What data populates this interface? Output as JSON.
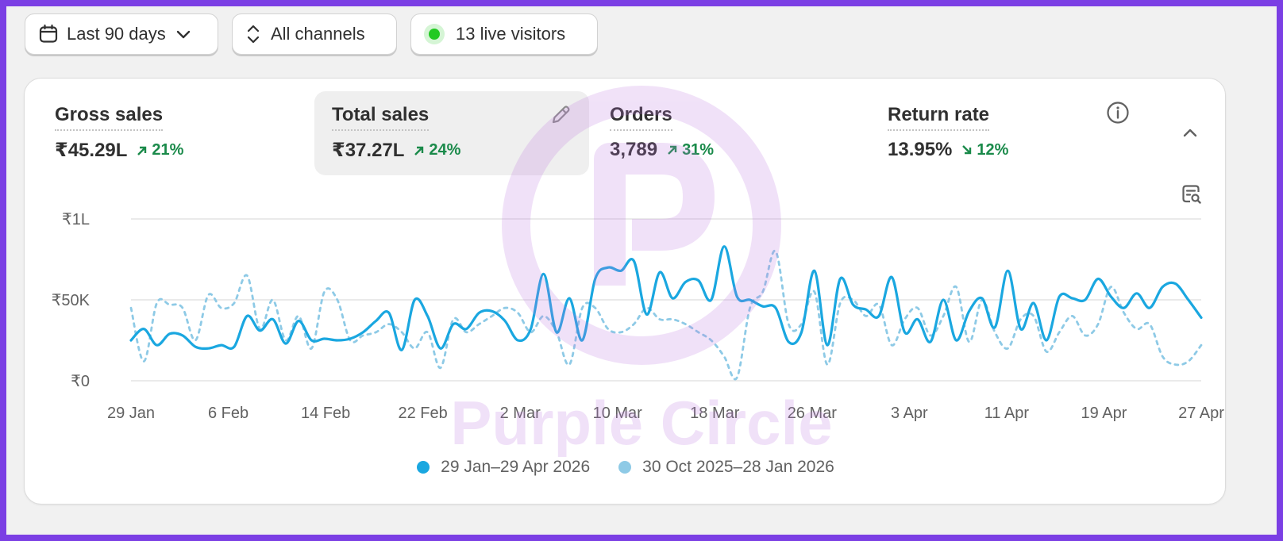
{
  "filters": {
    "date_range": "Last 90 days",
    "channels": "All channels",
    "live_visitors": "13 live visitors"
  },
  "metrics": [
    {
      "title": "Gross sales",
      "value": "₹45.29L",
      "delta": "21%",
      "direction": "up"
    },
    {
      "title": "Total sales",
      "value": "₹37.27L",
      "delta": "24%",
      "direction": "up"
    },
    {
      "title": "Orders",
      "value": "3,789",
      "delta": "31%",
      "direction": "up"
    },
    {
      "title": "Return rate",
      "value": "13.95%",
      "delta": "12%",
      "direction": "down"
    }
  ],
  "icons": {
    "date": "calendar-icon",
    "date_toggle": "chevron-down-icon",
    "channels": "sort-arrows-icon",
    "live": "live-dot-icon",
    "edit": "pencil-icon",
    "info": "info-icon",
    "collapse": "chevron-up-icon",
    "chart_search": "search-chart-icon",
    "delta_up": "arrow-up-right-icon",
    "delta_down": "arrow-down-right-icon"
  },
  "colors": {
    "current_series": "#1aa7e0",
    "previous_series": "#8ecae6",
    "positive_delta": "#1a8a4a",
    "live_dot": "#22c922",
    "watermark": "#c07ae0"
  },
  "watermark_text": "Purple Circle",
  "chart_data": {
    "type": "line",
    "x_labels": [
      "29 Jan",
      "6 Feb",
      "14 Feb",
      "22 Feb",
      "2 Mar",
      "10 Mar",
      "18 Mar",
      "26 Mar",
      "3 Apr",
      "11 Apr",
      "19 Apr",
      "27 Apr"
    ],
    "y_ticks": [
      "₹0",
      "₹50K",
      "₹1L"
    ],
    "ylim": [
      0,
      100000
    ],
    "grid": true,
    "legend_position": "bottom",
    "series": [
      {
        "name": "29 Jan–29 Apr 2026",
        "style": "solid",
        "values": [
          25000,
          32000,
          22000,
          29000,
          28000,
          21000,
          20000,
          22000,
          21000,
          40000,
          31000,
          38000,
          23000,
          37000,
          25000,
          26000,
          25000,
          26000,
          30000,
          37000,
          42000,
          19000,
          50000,
          40000,
          20000,
          35000,
          32000,
          42000,
          43000,
          37000,
          25000,
          32000,
          66000,
          30000,
          51000,
          25000,
          63000,
          70000,
          68000,
          74000,
          41000,
          67000,
          51000,
          61000,
          62000,
          50000,
          83000,
          52000,
          50000,
          46000,
          45000,
          24000,
          30000,
          68000,
          22000,
          63000,
          47000,
          44000,
          40000,
          64000,
          30000,
          38000,
          24000,
          50000,
          25000,
          43000,
          51000,
          33000,
          68000,
          32000,
          48000,
          25000,
          52000,
          51000,
          50000,
          63000,
          52000,
          45000,
          54000,
          45000,
          58000,
          60000,
          50000,
          39000
        ]
      },
      {
        "name": "30 Oct 2025–28 Jan 2026",
        "style": "dashed",
        "values": [
          45000,
          12000,
          48000,
          47000,
          45000,
          25000,
          53000,
          45000,
          48000,
          65000,
          32000,
          50000,
          25000,
          40000,
          20000,
          55000,
          50000,
          25000,
          28000,
          30000,
          35000,
          30000,
          20000,
          30000,
          8000,
          38000,
          30000,
          35000,
          40000,
          45000,
          42000,
          30000,
          40000,
          30000,
          10000,
          45000,
          45000,
          32000,
          30000,
          35000,
          45000,
          38000,
          38000,
          35000,
          30000,
          25000,
          15000,
          2000,
          45000,
          55000,
          80000,
          35000,
          35000,
          55000,
          10000,
          48000,
          50000,
          40000,
          47000,
          22000,
          38000,
          45000,
          28000,
          40000,
          58000,
          24000,
          50000,
          30000,
          20000,
          38000,
          40000,
          18000,
          30000,
          40000,
          28000,
          35000,
          58000,
          42000,
          32000,
          35000,
          15000,
          10000,
          12000,
          22000
        ]
      }
    ]
  }
}
